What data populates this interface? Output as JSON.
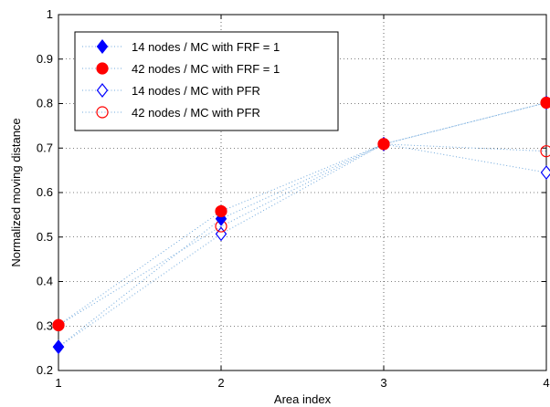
{
  "chart_data": {
    "type": "scatter",
    "title": "",
    "xlabel": "Area index",
    "ylabel": "Normalized moving distance",
    "xlim": [
      1,
      4
    ],
    "ylim": [
      0.2,
      1
    ],
    "xticks": [
      "1",
      "2",
      "3",
      "4"
    ],
    "yticks": [
      "0.2",
      "0.3",
      "0.4",
      "0.5",
      "0.6",
      "0.7",
      "0.8",
      "0.9",
      "1"
    ],
    "grid": true,
    "legend_position": "top-left",
    "x": [
      1,
      2,
      3,
      4
    ],
    "series": [
      {
        "name": "14 nodes / MC with FRF = 1",
        "values": [
          0.253,
          0.541,
          0.709,
          0.802
        ],
        "marker": "diamond",
        "filled": true,
        "color": "#0000ff"
      },
      {
        "name": "42 nodes / MC with FRF = 1",
        "values": [
          0.302,
          0.558,
          0.709,
          0.802
        ],
        "marker": "circle",
        "filled": true,
        "color": "#ff0000"
      },
      {
        "name": "14 nodes / MC with PFR",
        "values": [
          0.253,
          0.507,
          0.709,
          0.645
        ],
        "marker": "diamond",
        "filled": false,
        "color": "#0000ff"
      },
      {
        "name": "42 nodes / MC with PFR",
        "values": [
          0.302,
          0.524,
          0.709,
          0.693
        ],
        "marker": "circle",
        "filled": false,
        "color": "#ff0000"
      }
    ],
    "connector_color": "#6fa8dc"
  }
}
